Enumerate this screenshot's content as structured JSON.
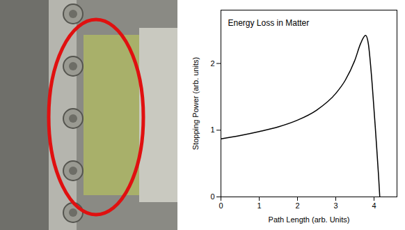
{
  "chart_data": {
    "type": "line",
    "title": "Energy Loss in Matter",
    "x_label": "Path Length (arb. Units)",
    "y_label": "Stopping Power (arb. units)",
    "x": [
      0,
      0.5,
      1,
      1.5,
      2,
      2.5,
      3,
      3.25,
      3.5,
      3.65,
      3.78,
      3.85,
      3.95,
      4.05,
      4.12,
      4.15
    ],
    "values": [
      0.87,
      0.92,
      0.98,
      1.05,
      1.15,
      1.3,
      1.55,
      1.75,
      2.05,
      2.3,
      2.42,
      2.3,
      1.7,
      0.9,
      0.3,
      0
    ],
    "color": "#000000",
    "xlim": [
      0,
      4.6
    ],
    "xticks": [
      0,
      1,
      2,
      3,
      4
    ],
    "ylim": [
      0,
      2.8
    ],
    "yticks": [
      0,
      1,
      2
    ],
    "grid": false
  }
}
